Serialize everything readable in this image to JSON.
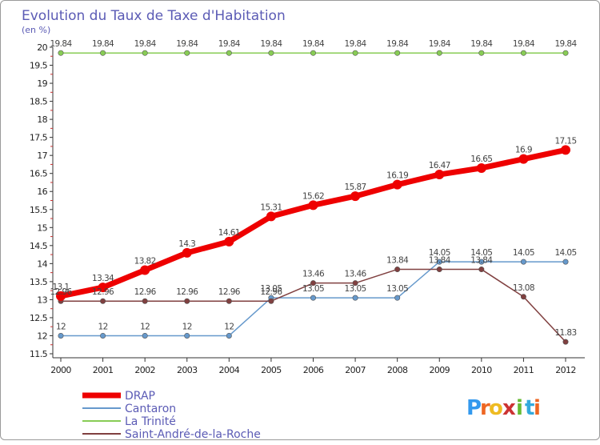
{
  "chart_data": {
    "type": "line",
    "title": "Evolution du Taux de Taxe d'Habitation",
    "ylabel": "(en %)",
    "xlabel": "",
    "x": [
      2000,
      2001,
      2002,
      2003,
      2004,
      2005,
      2006,
      2007,
      2008,
      2009,
      2010,
      2011,
      2012
    ],
    "ylim": [
      11.5,
      20
    ],
    "yticks": [
      11.5,
      12,
      12.5,
      13,
      13.5,
      14,
      14.5,
      15,
      15.5,
      16,
      16.5,
      17,
      17.5,
      18,
      18.5,
      19,
      19.5,
      20
    ],
    "grid": false,
    "legend_position": "bottom-left",
    "series": [
      {
        "name": "DRAP",
        "color": "#ee0000",
        "values": [
          13.1,
          13.34,
          13.82,
          14.3,
          14.61,
          15.31,
          15.62,
          15.87,
          16.19,
          16.47,
          16.65,
          16.9,
          17.15
        ],
        "labels": [
          "13.1",
          "13.34",
          "13.82",
          "14.3",
          "14.61",
          "15.31",
          "15.62",
          "15.87",
          "16.19",
          "16.47",
          "16.65",
          "16.9",
          "17.15"
        ]
      },
      {
        "name": "Cantaron",
        "color": "#6699cc",
        "values": [
          12,
          12,
          12,
          12,
          12,
          13.05,
          13.05,
          13.05,
          13.05,
          14.05,
          14.05,
          14.05,
          14.05
        ],
        "labels": [
          "12",
          "12",
          "12",
          "12",
          "12",
          "13.05",
          "13.05",
          "13.05",
          "13.05",
          "14.05",
          "14.05",
          "14.05",
          "14.05"
        ]
      },
      {
        "name": "La Trinité",
        "color": "#88cc55",
        "values": [
          19.84,
          19.84,
          19.84,
          19.84,
          19.84,
          19.84,
          19.84,
          19.84,
          19.84,
          19.84,
          19.84,
          19.84,
          19.84
        ],
        "labels": [
          "19.84",
          "19.84",
          "19.84",
          "19.84",
          "19.84",
          "19.84",
          "19.84",
          "19.84",
          "19.84",
          "19.84",
          "19.84",
          "19.84",
          "19.84"
        ]
      },
      {
        "name": "Saint-André-de-la-Roche",
        "color": "#804040",
        "values": [
          12.96,
          12.96,
          12.96,
          12.96,
          12.96,
          12.96,
          13.46,
          13.46,
          13.84,
          13.84,
          13.84,
          13.08,
          11.83
        ],
        "labels": [
          "12.96",
          "12.96",
          "12.96",
          "12.96",
          "12.96",
          "12.96",
          "13.46",
          "13.46",
          "13.84",
          "13.84",
          "13.84",
          "13.08",
          "11.83"
        ]
      }
    ]
  },
  "logo": {
    "letters": [
      "P",
      "r",
      "o",
      "x",
      "i",
      "t",
      "i"
    ],
    "colors": [
      "#3399ee",
      "#ee6622",
      "#eebb22",
      "#cc3333",
      "#66bb33",
      "#33aadd",
      "#ee6622"
    ]
  }
}
